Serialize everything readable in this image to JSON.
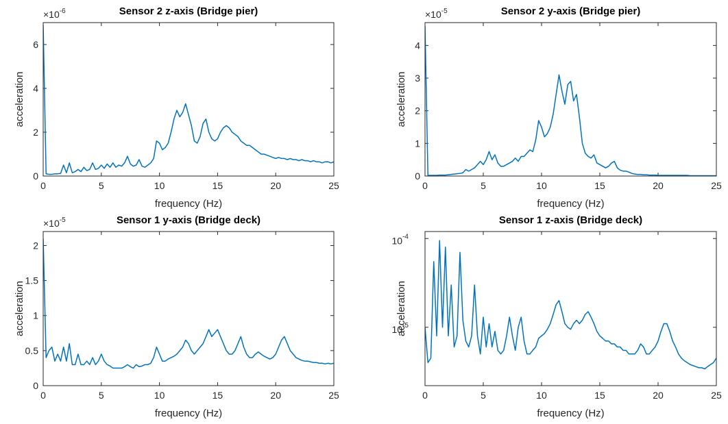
{
  "chart_data": [
    {
      "type": "line",
      "title": "Sensor 2 z-axis (Bridge pier)",
      "xlabel": "frequency (Hz)",
      "ylabel": "acceleration",
      "y_scale_label": "×10",
      "y_scale_exponent": "-6",
      "color": "#0072bd",
      "log_y": false,
      "xlim": [
        0,
        25
      ],
      "xticks": [
        0,
        5,
        10,
        15,
        20,
        25
      ],
      "ylim": [
        0,
        7
      ],
      "yticks": [
        0,
        2,
        4,
        6
      ],
      "x": [
        0,
        0.25,
        0.5,
        0.75,
        1,
        1.25,
        1.5,
        1.75,
        2,
        2.25,
        2.5,
        2.75,
        3,
        3.25,
        3.5,
        3.75,
        4,
        4.25,
        4.5,
        4.75,
        5,
        5.25,
        5.5,
        5.75,
        6,
        6.25,
        6.5,
        6.75,
        7,
        7.25,
        7.5,
        7.75,
        8,
        8.25,
        8.5,
        8.75,
        9,
        9.25,
        9.5,
        9.75,
        10,
        10.25,
        10.5,
        10.75,
        11,
        11.25,
        11.5,
        11.75,
        12,
        12.25,
        12.5,
        12.75,
        13,
        13.25,
        13.5,
        13.75,
        14,
        14.25,
        14.5,
        14.75,
        15,
        15.25,
        15.5,
        15.75,
        16,
        16.25,
        16.5,
        16.75,
        17,
        17.25,
        17.5,
        17.75,
        18,
        18.25,
        18.5,
        18.75,
        19,
        19.25,
        19.5,
        19.75,
        20,
        20.25,
        20.5,
        20.75,
        21,
        21.25,
        21.5,
        21.75,
        22,
        22.25,
        22.5,
        22.75,
        23,
        23.25,
        23.5,
        23.75,
        24,
        24.25,
        24.5,
        24.75,
        25
      ],
      "values": [
        6.9,
        0.1,
        0.08,
        0.08,
        0.1,
        0.1,
        0.12,
        0.5,
        0.15,
        0.6,
        0.15,
        0.2,
        0.3,
        0.2,
        0.4,
        0.25,
        0.3,
        0.6,
        0.3,
        0.35,
        0.5,
        0.35,
        0.55,
        0.4,
        0.6,
        0.4,
        0.5,
        0.45,
        0.6,
        0.9,
        0.55,
        0.45,
        0.5,
        0.75,
        0.45,
        0.4,
        0.5,
        0.6,
        0.8,
        1.6,
        1.5,
        1.2,
        1.3,
        1.5,
        2.0,
        2.6,
        3.0,
        2.7,
        2.9,
        3.3,
        2.8,
        2.3,
        1.6,
        1.5,
        1.8,
        2.4,
        2.6,
        2.0,
        1.7,
        1.6,
        1.7,
        2.0,
        2.2,
        2.3,
        2.2,
        2.0,
        1.9,
        1.8,
        1.6,
        1.5,
        1.4,
        1.4,
        1.3,
        1.2,
        1.1,
        1.0,
        1.0,
        0.95,
        0.9,
        0.85,
        0.8,
        0.85,
        0.8,
        0.8,
        0.75,
        0.8,
        0.75,
        0.75,
        0.7,
        0.75,
        0.7,
        0.7,
        0.65,
        0.7,
        0.65,
        0.65,
        0.6,
        0.65,
        0.65,
        0.6,
        0.65
      ]
    },
    {
      "type": "line",
      "title": "Sensor 2 y-axis (Bridge pier)",
      "xlabel": "frequency (Hz)",
      "ylabel": "acceleration",
      "y_scale_label": "×10",
      "y_scale_exponent": "-5",
      "color": "#0072bd",
      "log_y": false,
      "xlim": [
        0,
        25
      ],
      "xticks": [
        0,
        5,
        10,
        15,
        20,
        25
      ],
      "ylim": [
        0,
        4.7
      ],
      "yticks": [
        0,
        1,
        2,
        3,
        4
      ],
      "x": [
        0,
        0.25,
        0.5,
        0.75,
        1,
        1.25,
        1.5,
        1.75,
        2,
        2.25,
        2.5,
        2.75,
        3,
        3.25,
        3.5,
        3.75,
        4,
        4.25,
        4.5,
        4.75,
        5,
        5.25,
        5.5,
        5.75,
        6,
        6.25,
        6.5,
        6.75,
        7,
        7.25,
        7.5,
        7.75,
        8,
        8.25,
        8.5,
        8.75,
        9,
        9.25,
        9.5,
        9.75,
        10,
        10.25,
        10.5,
        10.75,
        11,
        11.25,
        11.5,
        11.75,
        12,
        12.25,
        12.5,
        12.75,
        13,
        13.25,
        13.5,
        13.75,
        14,
        14.25,
        14.5,
        14.75,
        15,
        15.25,
        15.5,
        15.75,
        16,
        16.25,
        16.5,
        16.75,
        17,
        17.25,
        17.5,
        17.75,
        18,
        18.25,
        18.5,
        18.75,
        19,
        19.25,
        19.5,
        19.75,
        20,
        20.25,
        20.5,
        20.75,
        21,
        21.25,
        21.5,
        21.75,
        22,
        22.25,
        22.5,
        22.75,
        23,
        23.25,
        23.5,
        23.75,
        24,
        24.25,
        24.5,
        24.75,
        25
      ],
      "values": [
        4.6,
        0.02,
        0.02,
        0.02,
        0.02,
        0.03,
        0.03,
        0.03,
        0.04,
        0.05,
        0.06,
        0.07,
        0.08,
        0.1,
        0.2,
        0.15,
        0.2,
        0.25,
        0.35,
        0.45,
        0.35,
        0.5,
        0.75,
        0.5,
        0.65,
        0.4,
        0.3,
        0.3,
        0.35,
        0.4,
        0.45,
        0.55,
        0.45,
        0.6,
        0.6,
        0.7,
        0.8,
        0.75,
        1.1,
        1.7,
        1.5,
        1.2,
        1.3,
        1.5,
        1.9,
        2.5,
        3.1,
        2.6,
        2.2,
        2.8,
        2.9,
        2.3,
        2.5,
        1.8,
        1.0,
        0.7,
        0.6,
        0.55,
        0.65,
        0.4,
        0.35,
        0.3,
        0.25,
        0.3,
        0.4,
        0.45,
        0.25,
        0.18,
        0.15,
        0.15,
        0.12,
        0.08,
        0.06,
        0.05,
        0.05,
        0.04,
        0.04,
        0.03,
        0.03,
        0.03,
        0.02,
        0.02,
        0.02,
        0.02,
        0.02,
        0.02,
        0.02,
        0.02,
        0.02,
        0.02,
        0.02,
        0.01,
        0.01,
        0.01,
        0.01,
        0.01,
        0.01,
        0.01,
        0.01,
        0.01,
        0.01
      ]
    },
    {
      "type": "line",
      "title": "Sensor 1 y-axis (Bridge deck)",
      "xlabel": "frequency (Hz)",
      "ylabel": "acceleration",
      "y_scale_label": "×10",
      "y_scale_exponent": "-5",
      "color": "#0072bd",
      "log_y": false,
      "xlim": [
        0,
        25
      ],
      "xticks": [
        0,
        5,
        10,
        15,
        20,
        25
      ],
      "ylim": [
        0,
        2.2
      ],
      "yticks": [
        0,
        0.5,
        1,
        1.5,
        2
      ],
      "x": [
        0,
        0.25,
        0.5,
        0.75,
        1,
        1.25,
        1.5,
        1.75,
        2,
        2.25,
        2.5,
        2.75,
        3,
        3.25,
        3.5,
        3.75,
        4,
        4.25,
        4.5,
        4.75,
        5,
        5.25,
        5.5,
        5.75,
        6,
        6.25,
        6.5,
        6.75,
        7,
        7.25,
        7.5,
        7.75,
        8,
        8.25,
        8.5,
        8.75,
        9,
        9.25,
        9.5,
        9.75,
        10,
        10.25,
        10.5,
        10.75,
        11,
        11.25,
        11.5,
        11.75,
        12,
        12.25,
        12.5,
        12.75,
        13,
        13.25,
        13.5,
        13.75,
        14,
        14.25,
        14.5,
        14.75,
        15,
        15.25,
        15.5,
        15.75,
        16,
        16.25,
        16.5,
        16.75,
        17,
        17.25,
        17.5,
        17.75,
        18,
        18.25,
        18.5,
        18.75,
        19,
        19.25,
        19.5,
        19.75,
        20,
        20.25,
        20.5,
        20.75,
        21,
        21.25,
        21.5,
        21.75,
        22,
        22.25,
        22.5,
        22.75,
        23,
        23.25,
        23.5,
        23.75,
        24,
        24.25,
        24.5,
        24.75,
        25
      ],
      "values": [
        2.1,
        0.4,
        0.5,
        0.55,
        0.35,
        0.45,
        0.35,
        0.55,
        0.35,
        0.6,
        0.3,
        0.3,
        0.45,
        0.3,
        0.3,
        0.35,
        0.3,
        0.4,
        0.3,
        0.35,
        0.45,
        0.35,
        0.3,
        0.28,
        0.25,
        0.25,
        0.25,
        0.25,
        0.27,
        0.3,
        0.27,
        0.25,
        0.3,
        0.27,
        0.28,
        0.3,
        0.3,
        0.32,
        0.4,
        0.55,
        0.45,
        0.35,
        0.35,
        0.38,
        0.4,
        0.42,
        0.45,
        0.5,
        0.55,
        0.65,
        0.6,
        0.5,
        0.45,
        0.5,
        0.55,
        0.6,
        0.7,
        0.8,
        0.7,
        0.75,
        0.8,
        0.7,
        0.6,
        0.5,
        0.45,
        0.45,
        0.5,
        0.6,
        0.7,
        0.55,
        0.45,
        0.4,
        0.4,
        0.45,
        0.48,
        0.45,
        0.42,
        0.4,
        0.38,
        0.4,
        0.45,
        0.55,
        0.65,
        0.7,
        0.6,
        0.5,
        0.45,
        0.4,
        0.38,
        0.36,
        0.35,
        0.35,
        0.34,
        0.33,
        0.33,
        0.32,
        0.32,
        0.31,
        0.32,
        0.31,
        0.32
      ]
    },
    {
      "type": "line",
      "title": "Sensor 1 z-axis (Bridge deck)",
      "xlabel": "frequency (Hz)",
      "ylabel": "acceleration",
      "color": "#0072bd",
      "log_y": true,
      "xlim": [
        0,
        25
      ],
      "xticks": [
        0,
        5,
        10,
        15,
        20,
        25
      ],
      "ylim": [
        2.2e-06,
        0.00012
      ],
      "yticks": [
        {
          "value": 1e-05,
          "label": "10",
          "exponent": "-5"
        },
        {
          "value": 0.0001,
          "label": "10",
          "exponent": "-4"
        }
      ],
      "x": [
        0,
        0.25,
        0.5,
        0.75,
        1,
        1.25,
        1.5,
        1.75,
        2,
        2.25,
        2.5,
        2.75,
        3,
        3.25,
        3.5,
        3.75,
        4,
        4.25,
        4.5,
        4.75,
        5,
        5.25,
        5.5,
        5.75,
        6,
        6.25,
        6.5,
        6.75,
        7,
        7.25,
        7.5,
        7.75,
        8,
        8.25,
        8.5,
        8.75,
        9,
        9.25,
        9.5,
        9.75,
        10,
        10.25,
        10.5,
        10.75,
        11,
        11.25,
        11.5,
        11.75,
        12,
        12.25,
        12.5,
        12.75,
        13,
        13.25,
        13.5,
        13.75,
        14,
        14.25,
        14.5,
        14.75,
        15,
        15.25,
        15.5,
        15.75,
        16,
        16.25,
        16.5,
        16.75,
        17,
        17.25,
        17.5,
        17.75,
        18,
        18.25,
        18.5,
        18.75,
        19,
        19.25,
        19.5,
        19.75,
        20,
        20.25,
        20.5,
        20.75,
        21,
        21.25,
        21.5,
        21.75,
        22,
        22.25,
        22.5,
        22.75,
        23,
        23.25,
        23.5,
        23.75,
        24,
        24.25,
        24.5,
        24.75,
        25
      ],
      "values": [
        1e-05,
        4e-06,
        4.5e-06,
        5.5e-05,
        8e-06,
        9.5e-05,
        1e-05,
        8e-05,
        8e-06,
        3e-05,
        6e-06,
        8e-06,
        7e-05,
        1.2e-05,
        7e-06,
        6e-06,
        8e-06,
        3e-05,
        8e-06,
        5e-06,
        1.3e-05,
        6e-06,
        1.1e-05,
        6e-06,
        9e-06,
        5.5e-06,
        5e-06,
        5.5e-06,
        8e-06,
        1.3e-05,
        8e-06,
        5.5e-06,
        1e-05,
        1.3e-05,
        7e-06,
        5e-06,
        5e-06,
        5.5e-06,
        6e-06,
        7.5e-06,
        8e-06,
        8.5e-06,
        9.5e-06,
        1.1e-05,
        1.4e-05,
        1.8e-05,
        2e-05,
        1.5e-05,
        1.1e-05,
        1e-05,
        9.5e-06,
        1.1e-05,
        1.2e-05,
        1.1e-05,
        1.2e-05,
        1.4e-05,
        1.5e-05,
        1.3e-05,
        1.1e-05,
        9e-06,
        8e-06,
        7.5e-06,
        7e-06,
        7e-06,
        6.5e-06,
        6.5e-06,
        6e-06,
        6e-06,
        5.5e-06,
        5.5e-06,
        5e-06,
        5e-06,
        5e-06,
        5.5e-06,
        6.5e-06,
        6e-06,
        5e-06,
        5e-06,
        5.5e-06,
        6e-06,
        7e-06,
        9e-06,
        1.1e-05,
        1.1e-05,
        9e-06,
        7e-06,
        6e-06,
        5e-06,
        4.5e-06,
        4.2e-06,
        4e-06,
        3.8e-06,
        3.7e-06,
        3.6e-06,
        3.5e-06,
        3.5e-06,
        3.4e-06,
        3.6e-06,
        3.8e-06,
        4e-06,
        4.5e-06
      ]
    }
  ]
}
